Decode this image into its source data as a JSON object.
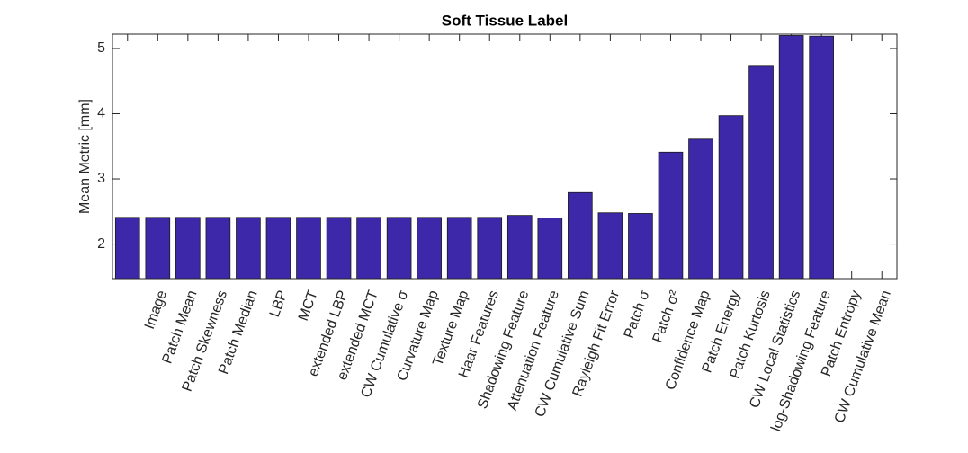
{
  "chart_data": {
    "type": "bar",
    "title": "Soft Tissue Label",
    "ylabel": "Mean Metric [mm]",
    "categories": [
      null,
      "Image",
      "Patch Mean",
      "Patch Skewness",
      "Patch Median",
      "LBP",
      "MCT",
      "extended LBP",
      "extended MCT",
      "CW Cumulative σ",
      "Curvature Map",
      "Texture Map",
      "Haar Features",
      "Shadowing Feature",
      "Attenuation Feature",
      "CW Cumulative Sum",
      "Rayleigh Fit Error",
      "Patch σ",
      "Patch σ²",
      "Confidence Map",
      "Patch Energy",
      "Patch Kurtosis",
      "CW Local Statistics",
      "log-Shadowing Feature",
      "Patch Entropy",
      "CW Cumulative Mean"
    ],
    "values": [
      2.41,
      2.41,
      2.41,
      2.41,
      2.41,
      2.41,
      2.41,
      2.41,
      2.41,
      2.41,
      2.41,
      2.41,
      2.41,
      2.44,
      2.4,
      2.79,
      2.48,
      2.47,
      3.41,
      3.61,
      3.97,
      4.74,
      5.2,
      5.19,
      null,
      null
    ],
    "color": "#3c28a8",
    "ylim": [
      1.47,
      5.22
    ],
    "yticks": [
      2,
      3,
      4,
      5
    ]
  }
}
